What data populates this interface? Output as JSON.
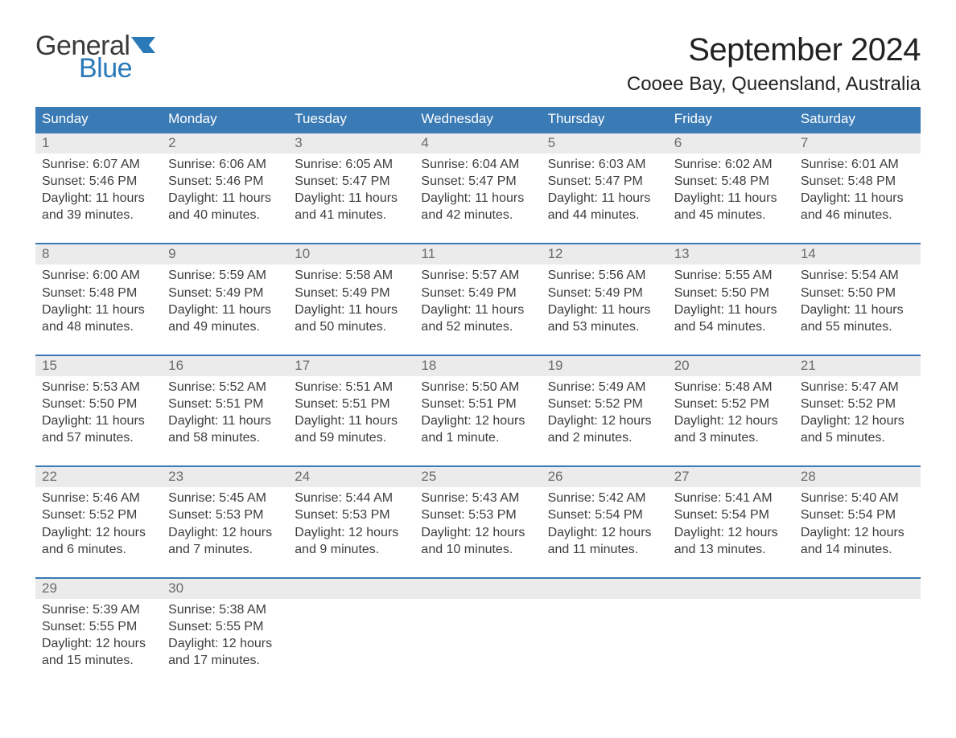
{
  "logo": {
    "text_top": "General",
    "text_bottom": "Blue",
    "flag_color": "#2a7ab9",
    "top_color": "#3a3a3a"
  },
  "title": "September 2024",
  "location": "Cooee Bay, Queensland, Australia",
  "colors": {
    "header_bg": "#3a7ab5",
    "header_text": "#ffffff",
    "daynum_bg": "#ebebeb",
    "daynum_text": "#6b6b6b",
    "body_text": "#3d3d3d",
    "week_border": "#3a7ab5",
    "page_bg": "#ffffff"
  },
  "weekdays": [
    "Sunday",
    "Monday",
    "Tuesday",
    "Wednesday",
    "Thursday",
    "Friday",
    "Saturday"
  ],
  "weeks": [
    [
      {
        "n": "1",
        "sr": "Sunrise: 6:07 AM",
        "ss": "Sunset: 5:46 PM",
        "d1": "Daylight: 11 hours",
        "d2": "and 39 minutes."
      },
      {
        "n": "2",
        "sr": "Sunrise: 6:06 AM",
        "ss": "Sunset: 5:46 PM",
        "d1": "Daylight: 11 hours",
        "d2": "and 40 minutes."
      },
      {
        "n": "3",
        "sr": "Sunrise: 6:05 AM",
        "ss": "Sunset: 5:47 PM",
        "d1": "Daylight: 11 hours",
        "d2": "and 41 minutes."
      },
      {
        "n": "4",
        "sr": "Sunrise: 6:04 AM",
        "ss": "Sunset: 5:47 PM",
        "d1": "Daylight: 11 hours",
        "d2": "and 42 minutes."
      },
      {
        "n": "5",
        "sr": "Sunrise: 6:03 AM",
        "ss": "Sunset: 5:47 PM",
        "d1": "Daylight: 11 hours",
        "d2": "and 44 minutes."
      },
      {
        "n": "6",
        "sr": "Sunrise: 6:02 AM",
        "ss": "Sunset: 5:48 PM",
        "d1": "Daylight: 11 hours",
        "d2": "and 45 minutes."
      },
      {
        "n": "7",
        "sr": "Sunrise: 6:01 AM",
        "ss": "Sunset: 5:48 PM",
        "d1": "Daylight: 11 hours",
        "d2": "and 46 minutes."
      }
    ],
    [
      {
        "n": "8",
        "sr": "Sunrise: 6:00 AM",
        "ss": "Sunset: 5:48 PM",
        "d1": "Daylight: 11 hours",
        "d2": "and 48 minutes."
      },
      {
        "n": "9",
        "sr": "Sunrise: 5:59 AM",
        "ss": "Sunset: 5:49 PM",
        "d1": "Daylight: 11 hours",
        "d2": "and 49 minutes."
      },
      {
        "n": "10",
        "sr": "Sunrise: 5:58 AM",
        "ss": "Sunset: 5:49 PM",
        "d1": "Daylight: 11 hours",
        "d2": "and 50 minutes."
      },
      {
        "n": "11",
        "sr": "Sunrise: 5:57 AM",
        "ss": "Sunset: 5:49 PM",
        "d1": "Daylight: 11 hours",
        "d2": "and 52 minutes."
      },
      {
        "n": "12",
        "sr": "Sunrise: 5:56 AM",
        "ss": "Sunset: 5:49 PM",
        "d1": "Daylight: 11 hours",
        "d2": "and 53 minutes."
      },
      {
        "n": "13",
        "sr": "Sunrise: 5:55 AM",
        "ss": "Sunset: 5:50 PM",
        "d1": "Daylight: 11 hours",
        "d2": "and 54 minutes."
      },
      {
        "n": "14",
        "sr": "Sunrise: 5:54 AM",
        "ss": "Sunset: 5:50 PM",
        "d1": "Daylight: 11 hours",
        "d2": "and 55 minutes."
      }
    ],
    [
      {
        "n": "15",
        "sr": "Sunrise: 5:53 AM",
        "ss": "Sunset: 5:50 PM",
        "d1": "Daylight: 11 hours",
        "d2": "and 57 minutes."
      },
      {
        "n": "16",
        "sr": "Sunrise: 5:52 AM",
        "ss": "Sunset: 5:51 PM",
        "d1": "Daylight: 11 hours",
        "d2": "and 58 minutes."
      },
      {
        "n": "17",
        "sr": "Sunrise: 5:51 AM",
        "ss": "Sunset: 5:51 PM",
        "d1": "Daylight: 11 hours",
        "d2": "and 59 minutes."
      },
      {
        "n": "18",
        "sr": "Sunrise: 5:50 AM",
        "ss": "Sunset: 5:51 PM",
        "d1": "Daylight: 12 hours",
        "d2": "and 1 minute."
      },
      {
        "n": "19",
        "sr": "Sunrise: 5:49 AM",
        "ss": "Sunset: 5:52 PM",
        "d1": "Daylight: 12 hours",
        "d2": "and 2 minutes."
      },
      {
        "n": "20",
        "sr": "Sunrise: 5:48 AM",
        "ss": "Sunset: 5:52 PM",
        "d1": "Daylight: 12 hours",
        "d2": "and 3 minutes."
      },
      {
        "n": "21",
        "sr": "Sunrise: 5:47 AM",
        "ss": "Sunset: 5:52 PM",
        "d1": "Daylight: 12 hours",
        "d2": "and 5 minutes."
      }
    ],
    [
      {
        "n": "22",
        "sr": "Sunrise: 5:46 AM",
        "ss": "Sunset: 5:52 PM",
        "d1": "Daylight: 12 hours",
        "d2": "and 6 minutes."
      },
      {
        "n": "23",
        "sr": "Sunrise: 5:45 AM",
        "ss": "Sunset: 5:53 PM",
        "d1": "Daylight: 12 hours",
        "d2": "and 7 minutes."
      },
      {
        "n": "24",
        "sr": "Sunrise: 5:44 AM",
        "ss": "Sunset: 5:53 PM",
        "d1": "Daylight: 12 hours",
        "d2": "and 9 minutes."
      },
      {
        "n": "25",
        "sr": "Sunrise: 5:43 AM",
        "ss": "Sunset: 5:53 PM",
        "d1": "Daylight: 12 hours",
        "d2": "and 10 minutes."
      },
      {
        "n": "26",
        "sr": "Sunrise: 5:42 AM",
        "ss": "Sunset: 5:54 PM",
        "d1": "Daylight: 12 hours",
        "d2": "and 11 minutes."
      },
      {
        "n": "27",
        "sr": "Sunrise: 5:41 AM",
        "ss": "Sunset: 5:54 PM",
        "d1": "Daylight: 12 hours",
        "d2": "and 13 minutes."
      },
      {
        "n": "28",
        "sr": "Sunrise: 5:40 AM",
        "ss": "Sunset: 5:54 PM",
        "d1": "Daylight: 12 hours",
        "d2": "and 14 minutes."
      }
    ],
    [
      {
        "n": "29",
        "sr": "Sunrise: 5:39 AM",
        "ss": "Sunset: 5:55 PM",
        "d1": "Daylight: 12 hours",
        "d2": "and 15 minutes."
      },
      {
        "n": "30",
        "sr": "Sunrise: 5:38 AM",
        "ss": "Sunset: 5:55 PM",
        "d1": "Daylight: 12 hours",
        "d2": "and 17 minutes."
      },
      {
        "n": "",
        "sr": "",
        "ss": "",
        "d1": "",
        "d2": ""
      },
      {
        "n": "",
        "sr": "",
        "ss": "",
        "d1": "",
        "d2": ""
      },
      {
        "n": "",
        "sr": "",
        "ss": "",
        "d1": "",
        "d2": ""
      },
      {
        "n": "",
        "sr": "",
        "ss": "",
        "d1": "",
        "d2": ""
      },
      {
        "n": "",
        "sr": "",
        "ss": "",
        "d1": "",
        "d2": ""
      }
    ]
  ]
}
